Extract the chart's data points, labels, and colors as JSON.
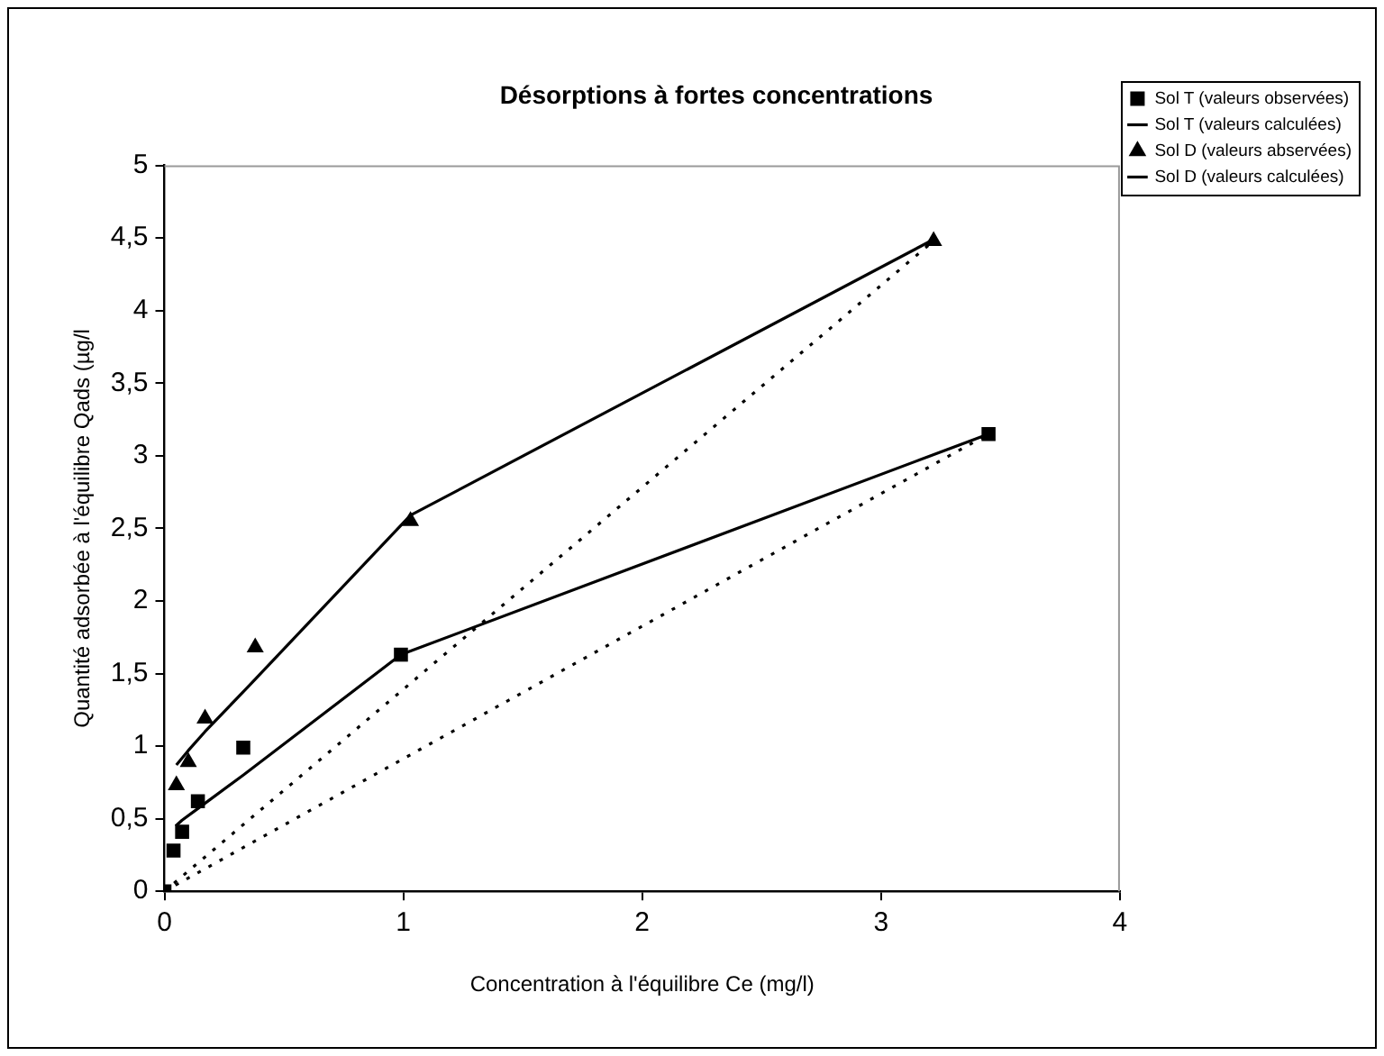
{
  "chart_data": {
    "type": "scatter",
    "title": "Désorptions à fortes concentrations",
    "xlabel": "Concentration à l'équilibre Ce (mg/l)",
    "ylabel": "Quantité adsorbée à l'équilibre Qads (µg/l",
    "xlim": [
      0,
      4
    ],
    "xticks": [
      0,
      1,
      2,
      3,
      4
    ],
    "ylim": [
      0,
      5
    ],
    "yticks": [
      0,
      {
        "value": 0.5,
        "label": "0,5"
      },
      1,
      {
        "value": 1.5,
        "label": "1,5"
      },
      2,
      {
        "value": 2.5,
        "label": "2,5"
      },
      3,
      {
        "value": 3.5,
        "label": "3,5"
      },
      4,
      {
        "value": 4.5,
        "label": "4,5"
      },
      5
    ],
    "grid": false,
    "legend": "top right",
    "series": [
      {
        "name": "Sol T (valeurs observées)",
        "type": "scatter",
        "marker": "square",
        "color": "#000000",
        "x": [
          0,
          0.038,
          0.074,
          0.14,
          0.33,
          0.99,
          3.45
        ],
        "values": [
          0,
          0.28,
          0.41,
          0.62,
          0.99,
          1.63,
          3.15
        ]
      },
      {
        "name": "Sol T (valeurs calculées)",
        "type": "line",
        "marker": "none",
        "line_style": "solid",
        "color": "#000000",
        "x": [
          0.047,
          0.074,
          0.14,
          0.33,
          0.99,
          3.45
        ],
        "values": [
          0.45,
          0.49,
          0.57,
          0.8,
          1.63,
          3.15
        ]
      },
      {
        "name": "Sol D (valeurs abservées)",
        "type": "scatter",
        "marker": "triangle",
        "color": "#000000",
        "x": [
          0.05,
          0.1,
          0.17,
          0.38,
          1.03,
          3.22
        ],
        "values": [
          0.73,
          0.89,
          1.19,
          1.68,
          2.55,
          4.48
        ]
      },
      {
        "name": "Sol D (valeurs calculées)",
        "type": "line",
        "marker": "none",
        "line_style": "solid",
        "color": "#000000",
        "x": [
          0.05,
          0.1,
          0.17,
          0.38,
          1.03,
          3.22
        ],
        "values": [
          0.87,
          0.97,
          1.1,
          1.46,
          2.59,
          4.49
        ]
      },
      {
        "type": "line",
        "marker": "none",
        "line_style": "dotted",
        "color": "#000000",
        "x": [
          0,
          3.45
        ],
        "values": [
          0,
          3.15
        ]
      },
      {
        "type": "line",
        "marker": "none",
        "line_style": "dotted",
        "color": "#000000",
        "x": [
          0,
          3.22
        ],
        "values": [
          0,
          4.48
        ]
      }
    ]
  }
}
